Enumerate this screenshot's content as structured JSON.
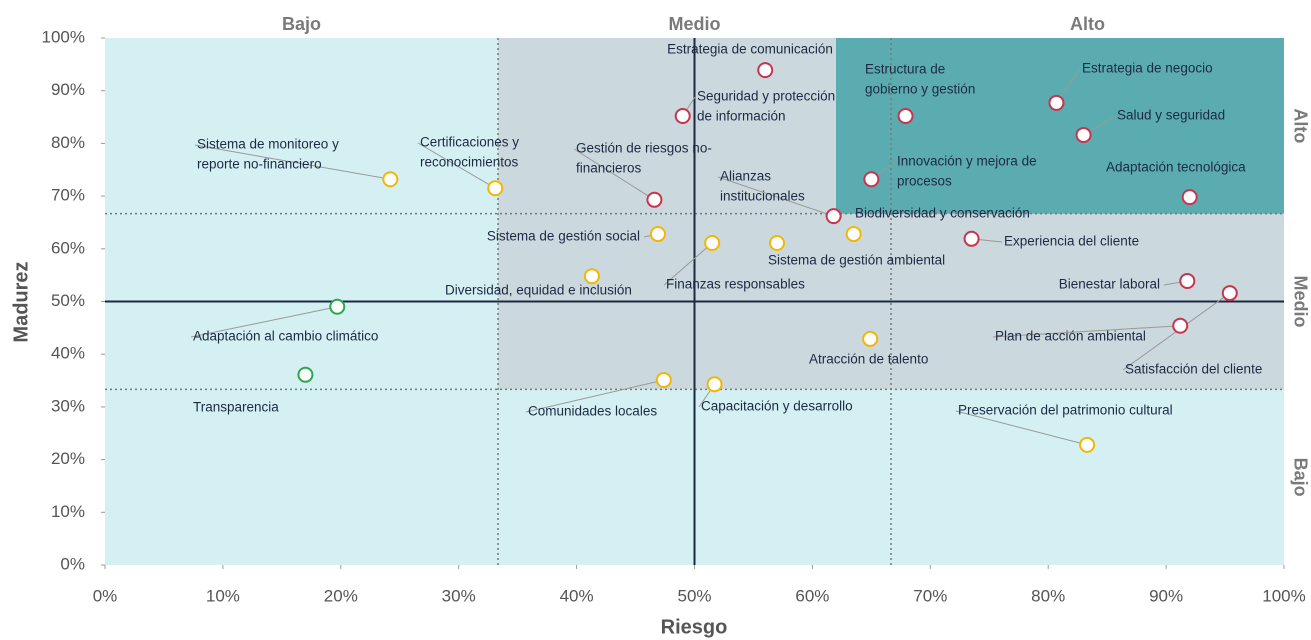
{
  "chart_data": {
    "type": "scatter",
    "x_label": "Riesgo",
    "y_label": "Madurez",
    "x_zones": [
      "Bajo",
      "Medio",
      "Alto"
    ],
    "y_zones": [
      "Alto",
      "Medio",
      "Bajo"
    ],
    "xlim": [
      0,
      100
    ],
    "ylim": [
      0,
      100
    ],
    "xticks": [
      {
        "value": 0,
        "label": "0%"
      },
      {
        "value": 10,
        "label": "10%"
      },
      {
        "value": 20,
        "label": "20%"
      },
      {
        "value": 30,
        "label": "30%"
      },
      {
        "value": 40,
        "label": "40%"
      },
      {
        "value": 50,
        "label": "50%"
      },
      {
        "value": 60,
        "label": "60%"
      },
      {
        "value": 70,
        "label": "70%"
      },
      {
        "value": 80,
        "label": "80%"
      },
      {
        "value": 90,
        "label": "90%"
      },
      {
        "value": 100,
        "label": "100%"
      }
    ],
    "yticks": [
      {
        "value": 0,
        "label": "0%"
      },
      {
        "value": 10,
        "label": "10%"
      },
      {
        "value": 20,
        "label": "20%"
      },
      {
        "value": 30,
        "label": "30%"
      },
      {
        "value": 40,
        "label": "40%"
      },
      {
        "value": 50,
        "label": "50%"
      },
      {
        "value": 60,
        "label": "60%"
      },
      {
        "value": 70,
        "label": "70%"
      },
      {
        "value": 80,
        "label": "80%"
      },
      {
        "value": 90,
        "label": "90%"
      },
      {
        "value": 100,
        "label": "100%"
      }
    ],
    "labels": [
      [
        "Estrategia de comunicación"
      ],
      [
        "Seguridad y protección",
        "de información"
      ],
      [
        "Estructura de",
        "gobierno y gestión"
      ],
      [
        "Estrategia de negocio"
      ],
      [
        "Salud y seguridad"
      ],
      [
        "Adaptación tecnológica"
      ],
      [
        "Innovación y mejora de",
        "procesos"
      ],
      [
        "Alianzas",
        "institucionales"
      ],
      [
        "Biodiversidad y conservación"
      ],
      [
        "Gestión de riesgos no-",
        "financieros"
      ],
      [
        "Sistema de monitoreo y",
        "reporte no-financiero"
      ],
      [
        "Certificaciones y",
        "reconocimientos"
      ],
      [
        "Sistema de gestión social"
      ],
      [
        "Finanzas responsables"
      ],
      [
        "Sistema de gestión ambiental"
      ],
      [
        "Diversidad, equidad e inclusión"
      ],
      [
        "Experiencia del cliente"
      ],
      [
        "Bienestar laboral"
      ],
      [
        "Satisfacción del cliente"
      ],
      [
        "Plan de acción ambiental"
      ],
      [
        "Atracción de talento"
      ],
      [
        "Adaptación al cambio climático"
      ],
      [
        "Transparencia"
      ],
      [
        "Comunidades locales"
      ],
      [
        "Capacitación y desarrollo"
      ],
      [
        "Preservación del patrimonio cultural"
      ]
    ],
    "x": [
      56.0,
      49.0,
      67.9,
      80.7,
      83.0,
      92.0,
      65.0,
      61.8,
      63.5,
      46.6,
      24.2,
      33.1,
      46.9,
      51.5,
      57.0,
      41.3,
      73.5,
      91.8,
      95.4,
      91.2,
      64.9,
      19.7,
      17.0,
      47.4,
      51.7,
      83.3
    ],
    "values": [
      93.9,
      85.2,
      85.2,
      87.7,
      81.6,
      69.8,
      73.2,
      66.2,
      62.8,
      69.3,
      73.2,
      71.5,
      62.8,
      61.1,
      61.1,
      54.8,
      61.9,
      53.9,
      51.6,
      45.4,
      42.9,
      49.0,
      36.1,
      35.1,
      34.3,
      22.8
    ],
    "colors": [
      "#c8334e",
      "#c8334e",
      "#c8334e",
      "#c8334e",
      "#c8334e",
      "#c8334e",
      "#c8334e",
      "#c8334e",
      "#f2b705",
      "#c8334e",
      "#f2b705",
      "#f2b705",
      "#f2b705",
      "#f2b705",
      "#f2b705",
      "#f2b705",
      "#c8334e",
      "#c8334e",
      "#c8334e",
      "#c8334e",
      "#f2b705",
      "#2aa84a",
      "#2aa84a",
      "#f2b705",
      "#f2b705",
      "#f2b705"
    ]
  }
}
